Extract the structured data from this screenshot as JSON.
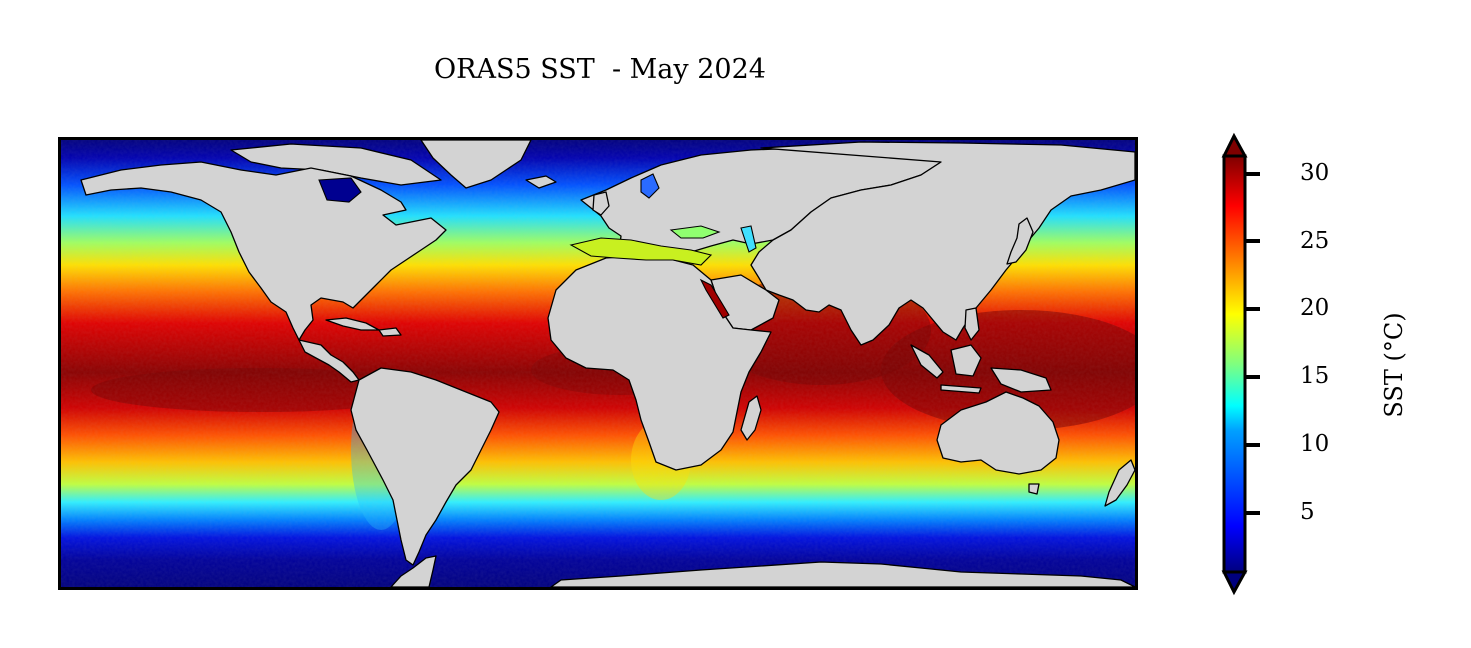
{
  "figure": {
    "title": "ORAS5 SST  - May 2024"
  },
  "colorbar": {
    "label": "SST (°C)",
    "ticks": [
      "30",
      "25",
      "20",
      "15",
      "10",
      "5"
    ],
    "tick_values": [
      30,
      25,
      20,
      15,
      10,
      5
    ],
    "range": [
      0.5,
      32
    ],
    "extend": "both",
    "colormap": "jet",
    "colormap_stops": [
      "#00007f",
      "#0000ff",
      "#007fff",
      "#00ffff",
      "#7fff7f",
      "#ffff00",
      "#ff7f00",
      "#ff0000",
      "#7f0000"
    ]
  },
  "map": {
    "projection": "PlateCarree",
    "variable": "sea surface temperature",
    "land_color": "#d3d3d3",
    "coastline_color": "#000000"
  }
}
